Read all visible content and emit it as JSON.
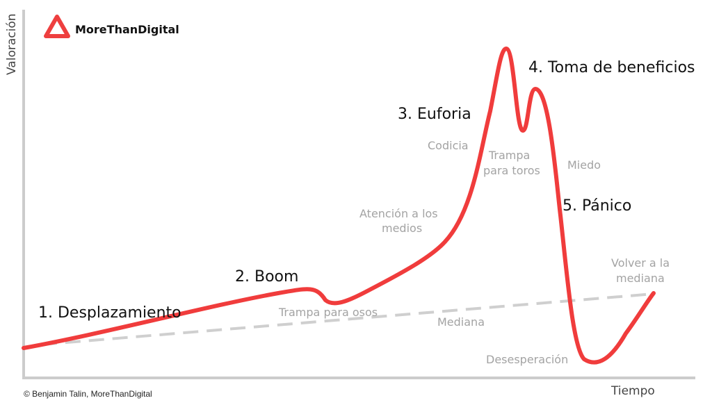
{
  "logo": {
    "brand": "MoreThanDigital",
    "icon": "morethandigital-logo-icon",
    "color": "#ee3f3f"
  },
  "axes": {
    "y_label": "Valoración",
    "x_label": "Tiempo",
    "color": "#cccccc"
  },
  "curve": {
    "color": "#f03c3c",
    "median_color": "#cfcfcf"
  },
  "phases": {
    "p1": "1. Desplazamiento",
    "p2": "2. Boom",
    "p3": "3. Euforia",
    "p4": "4. Toma de beneficios",
    "p5": "5. Pánico"
  },
  "notes": {
    "codicia": "Codicia",
    "trampa_toros_1": "Trampa",
    "trampa_toros_2": "para toros",
    "miedo": "Miedo",
    "atencion_1": "Atención a los",
    "atencion_2": "medios",
    "trampa_osos": "Trampa para osos",
    "mediana": "Mediana",
    "volver_1": "Volver a la",
    "volver_2": "mediana",
    "desesperacion": "Desesperación"
  },
  "credit": "© Benjamin Talin, MoreThanDigital"
}
